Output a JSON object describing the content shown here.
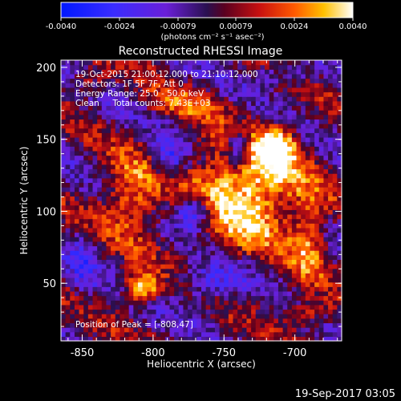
{
  "colorbar": {
    "tick_labels": [
      "-0.0040",
      "-0.0024",
      "-0.00079",
      "0.00079",
      "0.0024",
      "0.0040"
    ],
    "units_label": "(photons cm⁻² s⁻¹ asec⁻²)",
    "range": [
      -0.004,
      0.004
    ]
  },
  "image": {
    "title": "Reconstructed RHESSI Image",
    "info_lines": [
      "19-Oct-2015 21:00:12.000 to 21:10:12.000",
      "Detectors: 1F 5F 7F, Att 0",
      "Energy Range: 25.0 - 50.0 keV",
      "Clean     Total counts: 7.43E+03"
    ],
    "peak_text": "Position of Peak = [-808,47]"
  },
  "footer": {
    "timestamp": "19-Sep-2017 03:05"
  },
  "chart_data": {
    "type": "heatmap",
    "title": "Reconstructed RHESSI Image",
    "xlabel": "Heliocentric X (arcsec)",
    "ylabel": "Heliocentric Y (arcsec)",
    "xlim": [
      -865,
      -667
    ],
    "ylim": [
      10,
      205
    ],
    "x_ticks": [
      -850,
      -800,
      -750,
      -700
    ],
    "y_ticks": [
      50,
      100,
      150,
      200
    ],
    "x_tick_labels": [
      "-850",
      "-800",
      "-750",
      "-700"
    ],
    "y_tick_labels": [
      "50",
      "100",
      "150",
      "200"
    ],
    "colormap": "rhessi",
    "color_range": [
      -0.004,
      0.004
    ],
    "peak_position": [
      -808,
      47
    ],
    "sources": [
      {
        "x": -735,
        "y": 115,
        "amplitude": 0.0044,
        "spread_x": 38,
        "spread_y": 38
      },
      {
        "x": -712,
        "y": 145,
        "amplitude": 0.0036,
        "spread_x": 13,
        "spread_y": 14
      },
      {
        "x": -815,
        "y": 110,
        "amplitude": 0.0028,
        "spread_x": 22,
        "spread_y": 28
      },
      {
        "x": -780,
        "y": 175,
        "amplitude": 0.0018,
        "spread_x": 25,
        "spread_y": 10
      },
      {
        "x": -690,
        "y": 80,
        "amplitude": 0.0024,
        "spread_x": 12,
        "spread_y": 30
      },
      {
        "x": -808,
        "y": 47,
        "amplitude": 0.0045,
        "spread_x": 12,
        "spread_y": 10
      },
      {
        "x": -690,
        "y": 30,
        "amplitude": 0.002,
        "spread_x": 20,
        "spread_y": 10
      },
      {
        "x": -845,
        "y": 190,
        "amplitude": 0.0016,
        "spread_x": 14,
        "spread_y": 10
      },
      {
        "x": -740,
        "y": 145,
        "amplitude": -0.004,
        "spread_x": 9,
        "spread_y": 14
      },
      {
        "x": -770,
        "y": 100,
        "amplitude": -0.004,
        "spread_x": 14,
        "spread_y": 12
      },
      {
        "x": -790,
        "y": 135,
        "amplitude": -0.0026,
        "spread_x": 12,
        "spread_y": 16
      },
      {
        "x": -760,
        "y": 50,
        "amplitude": -0.0022,
        "spread_x": 24,
        "spread_y": 14
      },
      {
        "x": -850,
        "y": 60,
        "amplitude": -0.0016,
        "spread_x": 10,
        "spread_y": 22
      },
      {
        "x": -705,
        "y": 195,
        "amplitude": -0.0018,
        "spread_x": 22,
        "spread_y": 8
      }
    ],
    "stripe_amplitude": 0.0012,
    "noise_amplitude": 0.001
  }
}
